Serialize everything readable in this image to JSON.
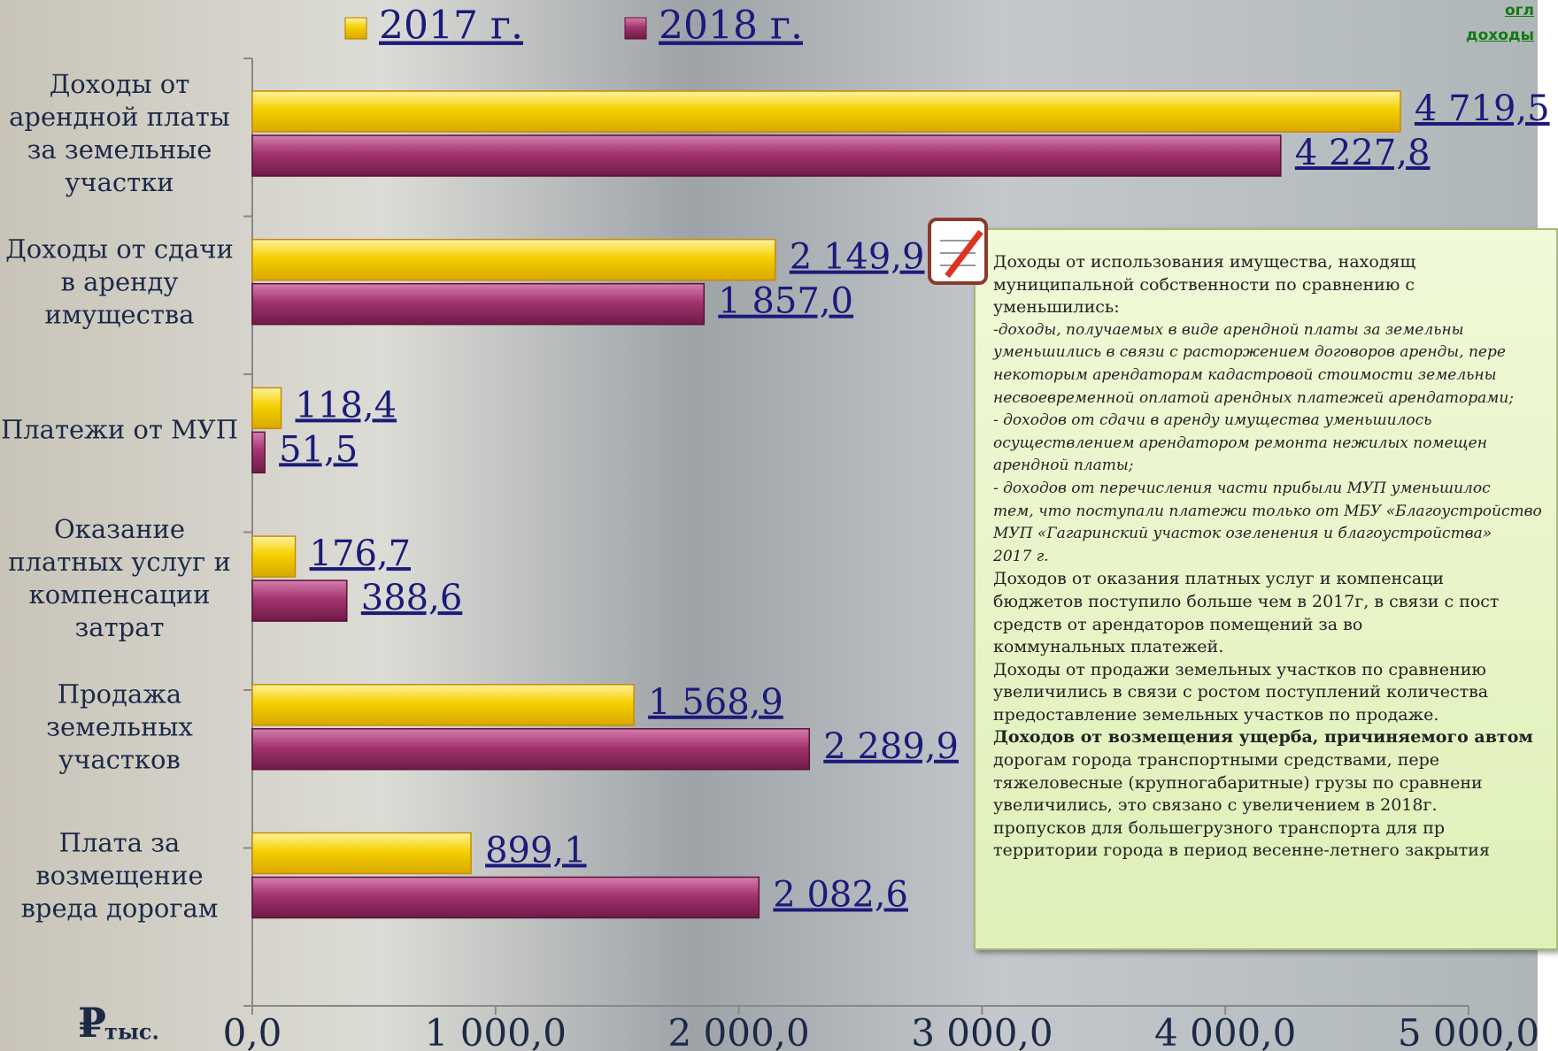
{
  "chart_data": {
    "type": "barh",
    "categories": [
      "Доходы от арендной платы за земельные участки",
      "Доходы от сдачи в аренду имущества",
      "Платежи от МУП",
      "Оказание платных услуг и компенсации затрат",
      "Продажа земельных участков",
      "Плата за возмещение вреда дорогам"
    ],
    "series": [
      {
        "name": "2017 г.",
        "color": "#f2c500",
        "values": [
          4719.5,
          2149.9,
          118.4,
          176.7,
          1568.9,
          899.1
        ],
        "value_labels": [
          "4 719,5",
          "2 149,9",
          "118,4",
          "176,7",
          "1 568,9",
          "899,1"
        ]
      },
      {
        "name": "2018 г.",
        "color": "#9a2d68",
        "values": [
          4227.8,
          1857.0,
          51.5,
          388.6,
          2289.9,
          2082.6
        ],
        "value_labels": [
          "4 227,8",
          "1 857,0",
          "51,5",
          "388,6",
          "2 289,9",
          "2 082,6"
        ]
      }
    ],
    "xlim": [
      0,
      5000
    ],
    "xticks": [
      {
        "value": 0,
        "label": "0,0"
      },
      {
        "value": 1000,
        "label": "1 000,0"
      },
      {
        "value": 2000,
        "label": "2 000,0"
      },
      {
        "value": 3000,
        "label": "3 000,0"
      },
      {
        "value": 4000,
        "label": "4 000,0"
      },
      {
        "value": 5000,
        "label": "5 000,0"
      }
    ],
    "x_unit_symbol": "₽",
    "x_unit": "тыс.",
    "grid": false,
    "legend": "top"
  },
  "corner_links": [
    "огл",
    "доходы"
  ],
  "note": {
    "lines": [
      {
        "text": "Доходы от использования имущества, находящ",
        "style": "normal"
      },
      {
        "text": "муниципальной собственности по сравнению с",
        "style": "normal"
      },
      {
        "text": "уменьшились:",
        "style": "normal"
      },
      {
        "text": "-доходы, получаемых в виде арендной платы за земельны",
        "style": "italic"
      },
      {
        "text": "уменьшились в связи с расторжением договоров аренды, пере",
        "style": "italic"
      },
      {
        "text": "некоторым арендаторам кадастровой стоимости земельны",
        "style": "italic"
      },
      {
        "text": "несвоевременной оплатой арендных платежей арендаторами;",
        "style": "italic"
      },
      {
        "text": "- доходов от сдачи в аренду имущества уменьшилось",
        "style": "italic"
      },
      {
        "text": "осуществлением арендатором ремонта нежилых помещен",
        "style": "italic"
      },
      {
        "text": "арендной платы;",
        "style": "italic"
      },
      {
        "text": "- доходов от перечисления части прибыли МУП уменьшилос",
        "style": "italic"
      },
      {
        "text": "тем, что поступали платежи только от МБУ «Благоустройство",
        "style": "italic"
      },
      {
        "text": "МУП «Гагаринский участок озеленения и благоустройства»",
        "style": "italic"
      },
      {
        "text": "2017 г.",
        "style": "italic"
      },
      {
        "text": "Доходов от оказания платных услуг и компенсаци",
        "style": "normal"
      },
      {
        "text": "бюджетов поступило больше чем в 2017г, в связи с пост",
        "style": "normal"
      },
      {
        "text": "средств от арендаторов помещений за во",
        "style": "normal"
      },
      {
        "text": "коммунальных платежей.",
        "style": "normal"
      },
      {
        "text": "Доходы от продажи земельных участков по сравнению",
        "style": "normal"
      },
      {
        "text": "увеличились в связи с ростом поступлений количества",
        "style": "normal"
      },
      {
        "text": "предоставление земельных участков по продаже.",
        "style": "normal"
      },
      {
        "text": "Доходов от возмещения ущерба, причиняемого автом",
        "style": "bold"
      },
      {
        "text": "дорогам города транспортными средствами, пере",
        "style": "normal"
      },
      {
        "text": "тяжеловесные (крупногабаритные) грузы по сравнени",
        "style": "normal"
      },
      {
        "text": "увеличились, это связано с увеличением в 2018г.",
        "style": "normal"
      },
      {
        "text": "пропусков для большегрузного транспорта для пр",
        "style": "normal"
      },
      {
        "text": "территории города в период весенне-летнего закрытия",
        "style": "normal"
      }
    ]
  }
}
